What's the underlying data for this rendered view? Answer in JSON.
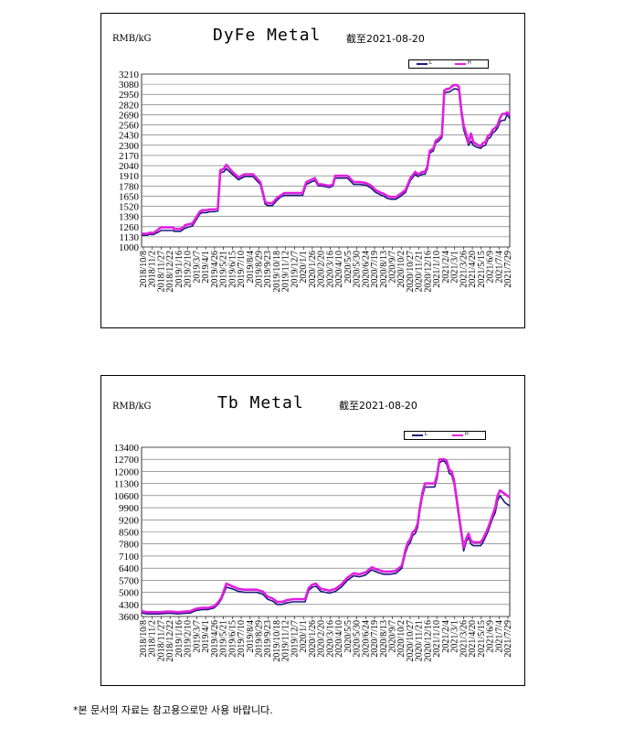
{
  "footnote": "*본 문서의 자료는 참고용으로만 사용 바랍니다.",
  "chart_data": [
    {
      "type": "line",
      "title": "DyFe Metal",
      "unit_label": "RMB/kG",
      "as_of": "截至2021-08-20",
      "legend": [
        "L",
        "H"
      ],
      "colors": {
        "L": "#1a1a7a",
        "H": "#e020e0"
      },
      "ylim": [
        1000,
        3210
      ],
      "yticks": [
        1000,
        1130,
        1260,
        1390,
        1520,
        1650,
        1780,
        1910,
        2040,
        2170,
        2300,
        2430,
        2560,
        2690,
        2820,
        2950,
        3080,
        3210
      ],
      "xticks": [
        "2018/10/8",
        "2018/11/2",
        "2018/11/27",
        "2018/12/22",
        "2019/1/16",
        "2019/2/10",
        "2019/3/7",
        "2019/4/1",
        "2019/4/26",
        "2019/5/21",
        "2019/6/15",
        "2019/7/10",
        "2019/8/4",
        "2019/8/29",
        "2019/9/23",
        "2019/10/18",
        "2019/11/12",
        "2019/12/7",
        "2020/1/1",
        "2020/1/26",
        "2020/2/20",
        "2020/3/16",
        "2020/4/10",
        "2020/5/5",
        "2020/5/30",
        "2020/6/24",
        "2020/7/19",
        "2020/8/13",
        "2020/9/7",
        "2020/10/2",
        "2020/10/27",
        "2020/11/21",
        "2020/12/16",
        "2021/1/10",
        "2021/2/4",
        "2021/3/1",
        "2021/3/26",
        "2021/4/20",
        "2021/5/15",
        "2021/6/9",
        "2021/7/4",
        "2021/7/29"
      ],
      "x": [
        0,
        5,
        6,
        10,
        15,
        16,
        20,
        26,
        27,
        32,
        35,
        36,
        42,
        48,
        50,
        54,
        56,
        58,
        60,
        63,
        65,
        68,
        70,
        75,
        80,
        85,
        88,
        92,
        95,
        98,
        102,
        104,
        108,
        112,
        115,
        118,
        120,
        125,
        129,
        133,
        136,
        140,
        143,
        146,
        149,
        152,
        155,
        158,
        160,
        165,
        170,
        172,
        175,
        180,
        185,
        189,
        193,
        198,
        200,
        203,
        206,
        210,
        214,
        218,
        222,
        226,
        228,
        232,
        234,
        236,
        238,
        241,
        243,
        245,
        248,
        250,
        252,
        254,
        256,
        258,
        260,
        262,
        264,
        266,
        268,
        270,
        272,
        274,
        276,
        278,
        280,
        282,
        284,
        286,
        288,
        290,
        292,
        294,
        296,
        298,
        300,
        302,
        304
      ],
      "series": [
        {
          "name": "L",
          "values": [
            1150,
            1150,
            1160,
            1160,
            1200,
            1210,
            1210,
            1210,
            1200,
            1200,
            1230,
            1240,
            1270,
            1420,
            1440,
            1440,
            1450,
            1450,
            1450,
            1460,
            1950,
            1960,
            2000,
            1930,
            1860,
            1900,
            1900,
            1900,
            1850,
            1800,
            1550,
            1530,
            1530,
            1600,
            1640,
            1660,
            1660,
            1660,
            1660,
            1660,
            1800,
            1830,
            1850,
            1780,
            1780,
            1770,
            1760,
            1780,
            1880,
            1880,
            1880,
            1850,
            1800,
            1800,
            1790,
            1760,
            1700,
            1660,
            1650,
            1620,
            1610,
            1610,
            1650,
            1700,
            1850,
            1930,
            1900,
            1930,
            1930,
            2000,
            2200,
            2230,
            2330,
            2350,
            2400,
            2960,
            2980,
            2980,
            3000,
            3020,
            3020,
            3000,
            2700,
            2500,
            2400,
            2300,
            2350,
            2300,
            2280,
            2270,
            2260,
            2290,
            2300,
            2380,
            2400,
            2460,
            2480,
            2520,
            2600,
            2620,
            2620,
            2700,
            2640
          ]
        },
        {
          "name": "H",
          "values": [
            1170,
            1170,
            1180,
            1180,
            1240,
            1250,
            1250,
            1250,
            1230,
            1230,
            1260,
            1280,
            1300,
            1450,
            1470,
            1470,
            1480,
            1480,
            1480,
            1490,
            1980,
            2000,
            2050,
            1960,
            1890,
            1930,
            1930,
            1930,
            1880,
            1830,
            1580,
            1560,
            1560,
            1630,
            1660,
            1690,
            1690,
            1690,
            1690,
            1690,
            1830,
            1860,
            1880,
            1800,
            1800,
            1790,
            1780,
            1800,
            1910,
            1910,
            1910,
            1880,
            1830,
            1830,
            1820,
            1790,
            1730,
            1690,
            1680,
            1650,
            1640,
            1640,
            1680,
            1730,
            1880,
            1960,
            1930,
            1960,
            1960,
            2030,
            2230,
            2260,
            2360,
            2380,
            2430,
            3000,
            3020,
            3020,
            3050,
            3070,
            3070,
            3050,
            2750,
            2550,
            2450,
            2330,
            2450,
            2340,
            2320,
            2300,
            2290,
            2330,
            2340,
            2420,
            2440,
            2500,
            2520,
            2560,
            2650,
            2700,
            2700,
            2720,
            2680
          ]
        }
      ]
    },
    {
      "type": "line",
      "title": "Tb Metal",
      "unit_label": "RMB/kG",
      "as_of": "截至2021-08-20",
      "legend": [
        "L",
        "H"
      ],
      "colors": {
        "L": "#1a1a7a",
        "H": "#e020e0"
      },
      "ylim": [
        3600,
        13400
      ],
      "yticks": [
        3600,
        4300,
        5000,
        5700,
        6400,
        7100,
        7800,
        8500,
        9200,
        9900,
        10600,
        11300,
        12000,
        12700,
        13400
      ],
      "xticks": [
        "2018/10/8",
        "2018/11/2",
        "2018/11/27",
        "2018/12/22",
        "2019/1/16",
        "2019/2/10",
        "2019/3/7",
        "2019/4/1",
        "2019/4/26",
        "2019/5/21",
        "2019/6/15",
        "2019/7/10",
        "2019/8/4",
        "2019/8/29",
        "2019/9/23",
        "2019/10/18",
        "2019/11/12",
        "2019/12/7",
        "2020/1/1",
        "2020/1/26",
        "2020/2/20",
        "2020/3/16",
        "2020/4/10",
        "2020/5/5",
        "2020/5/30",
        "2020/6/24",
        "2020/7/19",
        "2020/8/13",
        "2020/9/7",
        "2020/10/2",
        "2020/10/27",
        "2020/11/21",
        "2020/12/16",
        "2021/1/10",
        "2021/2/4",
        "2021/3/1",
        "2021/3/26",
        "2021/4/20",
        "2021/5/15",
        "2021/6/9",
        "2021/7/4",
        "2021/7/29"
      ],
      "x": [
        0,
        5,
        10,
        15,
        20,
        25,
        30,
        35,
        40,
        45,
        50,
        55,
        60,
        63,
        66,
        70,
        75,
        80,
        85,
        90,
        95,
        100,
        104,
        108,
        112,
        116,
        120,
        125,
        130,
        135,
        138,
        141,
        144,
        148,
        152,
        155,
        160,
        165,
        170,
        175,
        180,
        185,
        190,
        195,
        200,
        205,
        210,
        215,
        218,
        220,
        222,
        224,
        226,
        228,
        230,
        232,
        234,
        236,
        238,
        240,
        242,
        244,
        246,
        248,
        250,
        252,
        254,
        256,
        258,
        260,
        262,
        264,
        266,
        268,
        270,
        272,
        274,
        276,
        278,
        280,
        282,
        284,
        286,
        288,
        290,
        292,
        294,
        296,
        298,
        300,
        302,
        304
      ],
      "series": [
        {
          "name": "L",
          "values": [
            3800,
            3750,
            3750,
            3750,
            3780,
            3780,
            3750,
            3780,
            3800,
            3950,
            4000,
            4000,
            4100,
            4300,
            4600,
            5300,
            5200,
            5050,
            5000,
            5000,
            5000,
            4900,
            4600,
            4500,
            4300,
            4300,
            4400,
            4450,
            4450,
            4450,
            5100,
            5300,
            5350,
            5050,
            5000,
            4950,
            5050,
            5300,
            5700,
            5950,
            5900,
            6000,
            6300,
            6150,
            6050,
            6050,
            6100,
            6400,
            7300,
            7700,
            7900,
            8300,
            8400,
            8800,
            9800,
            10600,
            11100,
            11100,
            11100,
            11100,
            11100,
            11600,
            12500,
            12600,
            12600,
            12400,
            11900,
            11800,
            11300,
            10300,
            9300,
            8300,
            7400,
            7900,
            8200,
            7800,
            7700,
            7700,
            7700,
            7700,
            7900,
            8200,
            8500,
            8900,
            9300,
            9600,
            10300,
            10600,
            10400,
            10200,
            10100,
            10000
          ]
        },
        {
          "name": "H",
          "values": [
            3900,
            3850,
            3850,
            3850,
            3880,
            3880,
            3850,
            3880,
            3900,
            4050,
            4100,
            4100,
            4200,
            4400,
            4700,
            5500,
            5350,
            5200,
            5150,
            5150,
            5150,
            5050,
            4750,
            4650,
            4450,
            4450,
            4550,
            4600,
            4600,
            4600,
            5250,
            5450,
            5500,
            5200,
            5150,
            5100,
            5200,
            5450,
            5850,
            6100,
            6050,
            6150,
            6450,
            6300,
            6200,
            6200,
            6250,
            6550,
            7500,
            7900,
            8100,
            8500,
            8600,
            9000,
            10000,
            10800,
            11300,
            11300,
            11300,
            11300,
            11300,
            11800,
            12700,
            12700,
            12700,
            12600,
            12100,
            12000,
            11500,
            10500,
            9500,
            8500,
            7600,
            8100,
            8400,
            8000,
            7900,
            7900,
            7900,
            7900,
            8100,
            8400,
            8700,
            9100,
            9500,
            9900,
            10600,
            10900,
            10800,
            10700,
            10600,
            10500
          ]
        }
      ]
    }
  ]
}
